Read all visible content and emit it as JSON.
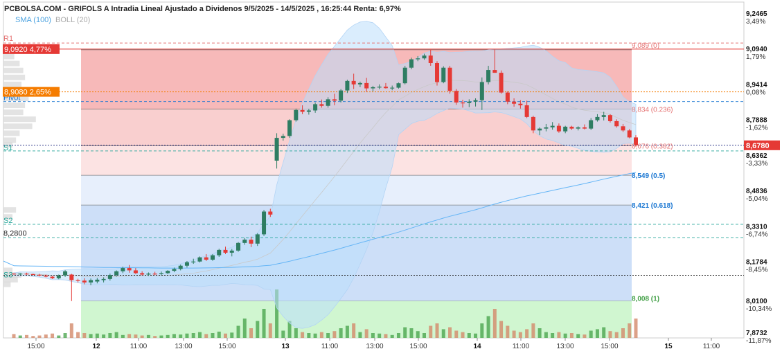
{
  "header": {
    "title": "PCBOLSA.COM - GRIFOLS A Intradia Lineal Ajustado a Dividenos 9/5/2025 - 14/5/2025 , 16:25:44 Renta: 6,97%",
    "indicator_sma": "SMA (100)",
    "indicator_boll": "BOLL (20)"
  },
  "colors": {
    "bull": "#2e7d62",
    "bear": "#e53935",
    "resistance": "#e57373",
    "support": "#26a69a",
    "pivot": "#1976d2",
    "fib_red_zone": "#f08080",
    "fib_blue_zone": "#90b8f0",
    "volume_bg": "#c8f5c8",
    "last_price": "#e53935",
    "orange": "#f57c00",
    "sma": "#64b5f6",
    "boll": "#bbdefb"
  },
  "chart_data": {
    "type": "candlestick",
    "x_axis": {
      "tick_labels": [
        "15:00",
        "12",
        "11:00",
        "13:00",
        "15:00",
        "13",
        "11:00",
        "13:00",
        "15:00",
        "14",
        "11:00",
        "13:00",
        "15:00",
        "15",
        "11:00"
      ]
    },
    "y_axis": {
      "range": [
        7.8732,
        9.2465
      ],
      "tick_values": [
        "9,2465",
        "9,0940",
        "8,9414",
        "8,7888",
        "8,6362",
        "8,4836",
        "8,3310",
        "8,1784",
        "8,0100",
        "7,8732"
      ],
      "percent_labels": [
        "3,49%",
        "1,79%",
        "0,08%",
        "-1,62%",
        "-3,33%",
        "-5,04%",
        "-6,74%",
        "-8,45%",
        "-10,34%",
        "-11,87%"
      ]
    },
    "levels": {
      "r1": {
        "label": "R1",
        "value": 9.118
      },
      "box_9092": {
        "text": "9,0920  4,77%",
        "value": 9.092
      },
      "box_8908": {
        "text": "8,9080  2,65%",
        "value": 8.908
      },
      "pivot": {
        "label": "Pivot",
        "value": 8.866
      },
      "s1": {
        "label": "S1",
        "value": 8.654
      },
      "s2": {
        "label": "S2",
        "value": 8.338
      },
      "level_8280": {
        "label": "8,2800",
        "value": 8.28
      },
      "s3": {
        "label": "S3",
        "value": 8.119
      },
      "last_price": {
        "text": "8,6780",
        "value": 8.678
      }
    },
    "fibonacci": [
      {
        "label": "9,089 (0)",
        "value": 9.089
      },
      {
        "label": "8,834 (0.236)",
        "value": 8.834
      },
      {
        "label": "8,676 (0.382)",
        "value": 8.676
      },
      {
        "label": "8,549 (0.5)",
        "value": 8.549
      },
      {
        "label": "8,421 (0.618)",
        "value": 8.421
      },
      {
        "label": "8,008 (1)",
        "value": 8.008
      }
    ],
    "volume_profile": [
      {
        "price": 9.09,
        "weight": 0.15
      },
      {
        "price": 9.06,
        "weight": 0.3
      },
      {
        "price": 9.03,
        "weight": 0.45
      },
      {
        "price": 9.0,
        "weight": 0.55
      },
      {
        "price": 8.97,
        "weight": 0.6
      },
      {
        "price": 8.94,
        "weight": 0.5
      },
      {
        "price": 8.91,
        "weight": 0.45
      },
      {
        "price": 8.88,
        "weight": 0.7
      },
      {
        "price": 8.85,
        "weight": 0.6
      },
      {
        "price": 8.82,
        "weight": 0.55
      },
      {
        "price": 8.79,
        "weight": 0.9
      },
      {
        "price": 8.76,
        "weight": 0.8
      },
      {
        "price": 8.73,
        "weight": 0.45
      },
      {
        "price": 8.7,
        "weight": 0.35
      },
      {
        "price": 8.68,
        "weight": 0.25
      },
      {
        "price": 8.4,
        "weight": 0.35
      },
      {
        "price": 8.37,
        "weight": 0.25
      },
      {
        "price": 8.14,
        "weight": 0.25
      },
      {
        "price": 8.12,
        "weight": 0.5
      },
      {
        "price": 8.1,
        "weight": 0.4
      },
      {
        "price": 8.08,
        "weight": 0.2
      }
    ],
    "candles": [
      [
        8.126,
        8.127,
        8.122,
        8.123
      ],
      [
        8.123,
        8.128,
        8.12,
        8.126
      ],
      [
        8.126,
        8.13,
        8.121,
        8.124
      ],
      [
        8.124,
        8.126,
        8.119,
        8.121
      ],
      [
        8.121,
        8.125,
        8.114,
        8.118
      ],
      [
        8.118,
        8.122,
        8.11,
        8.113
      ],
      [
        8.113,
        8.116,
        8.103,
        8.106
      ],
      [
        8.106,
        8.122,
        8.102,
        8.118
      ],
      [
        8.118,
        8.141,
        8.112,
        8.136
      ],
      [
        8.122,
        8.125,
        8.008,
        8.098
      ],
      [
        8.098,
        8.104,
        8.088,
        8.096
      ],
      [
        8.096,
        8.106,
        8.08,
        8.088
      ],
      [
        8.088,
        8.105,
        8.076,
        8.098
      ],
      [
        8.092,
        8.107,
        8.084,
        8.1
      ],
      [
        8.098,
        8.11,
        8.088,
        8.103
      ],
      [
        8.103,
        8.126,
        8.096,
        8.12
      ],
      [
        8.12,
        8.14,
        8.113,
        8.136
      ],
      [
        8.136,
        8.156,
        8.128,
        8.15
      ],
      [
        8.15,
        8.163,
        8.13,
        8.14
      ],
      [
        8.14,
        8.15,
        8.124,
        8.128
      ],
      [
        8.128,
        8.136,
        8.118,
        8.122
      ],
      [
        8.122,
        8.131,
        8.116,
        8.126
      ],
      [
        8.126,
        8.134,
        8.12,
        8.124
      ],
      [
        8.124,
        8.135,
        8.118,
        8.128
      ],
      [
        8.128,
        8.141,
        8.124,
        8.138
      ],
      [
        8.138,
        8.152,
        8.132,
        8.146
      ],
      [
        8.146,
        8.165,
        8.14,
        8.16
      ],
      [
        8.16,
        8.18,
        8.152,
        8.175
      ],
      [
        8.175,
        8.19,
        8.168,
        8.178
      ],
      [
        8.178,
        8.2,
        8.174,
        8.196
      ],
      [
        8.196,
        8.21,
        8.18,
        8.186
      ],
      [
        8.186,
        8.21,
        8.181,
        8.205
      ],
      [
        8.205,
        8.233,
        8.198,
        8.228
      ],
      [
        8.228,
        8.242,
        8.21,
        8.216
      ],
      [
        8.216,
        8.232,
        8.2,
        8.225
      ],
      [
        8.225,
        8.262,
        8.22,
        8.258
      ],
      [
        8.258,
        8.28,
        8.25,
        8.272
      ],
      [
        8.272,
        8.285,
        8.24,
        8.255
      ],
      [
        8.255,
        8.3,
        8.245,
        8.295
      ],
      [
        8.295,
        8.4,
        8.288,
        8.393
      ],
      [
        8.393,
        8.405,
        8.37,
        8.38
      ],
      [
        8.612,
        8.73,
        8.578,
        8.71
      ],
      [
        8.71,
        8.728,
        8.698,
        8.718
      ],
      [
        8.718,
        8.79,
        8.71,
        8.786
      ],
      [
        8.786,
        8.836,
        8.78,
        8.83
      ],
      [
        8.83,
        8.85,
        8.812,
        8.822
      ],
      [
        8.822,
        8.835,
        8.81,
        8.828
      ],
      [
        8.828,
        8.862,
        8.818,
        8.855
      ],
      [
        8.855,
        8.875,
        8.84,
        8.848
      ],
      [
        8.848,
        8.885,
        8.84,
        8.876
      ],
      [
        8.876,
        8.9,
        8.85,
        8.87
      ],
      [
        8.87,
        8.92,
        8.862,
        8.914
      ],
      [
        8.914,
        8.96,
        8.903,
        8.955
      ],
      [
        8.955,
        8.986,
        8.92,
        8.94
      ],
      [
        8.94,
        8.952,
        8.928,
        8.946
      ],
      [
        8.946,
        8.968,
        8.908,
        8.923
      ],
      [
        8.923,
        8.934,
        8.91,
        8.928
      ],
      [
        8.928,
        8.94,
        8.919,
        8.93
      ],
      [
        8.93,
        8.946,
        8.922,
        8.924
      ],
      [
        8.924,
        8.935,
        8.915,
        8.926
      ],
      [
        8.926,
        8.948,
        8.922,
        8.945
      ],
      [
        8.945,
        9.02,
        8.94,
        9.012
      ],
      [
        9.012,
        9.055,
        9.005,
        9.048
      ],
      [
        9.048,
        9.062,
        9.04,
        9.052
      ],
      [
        9.052,
        9.072,
        9.046,
        9.064
      ],
      [
        9.064,
        9.09,
        9.02,
        9.032
      ],
      [
        9.032,
        9.04,
        8.935,
        8.95
      ],
      [
        8.95,
        9.018,
        8.945,
        9.012
      ],
      [
        9.012,
        9.02,
        8.9,
        8.912
      ],
      [
        8.912,
        8.92,
        8.852,
        8.862
      ],
      [
        8.862,
        8.874,
        8.84,
        8.86
      ],
      [
        8.86,
        8.876,
        8.842,
        8.866
      ],
      [
        8.866,
        8.88,
        8.845,
        8.872
      ],
      [
        8.872,
        8.97,
        8.83,
        8.95
      ],
      [
        8.95,
        9.02,
        8.94,
        9.002
      ],
      [
        9.002,
        9.09,
        8.99,
        8.99
      ],
      [
        8.99,
        9.0,
        8.9,
        8.905
      ],
      [
        8.905,
        8.91,
        8.855,
        8.866
      ],
      [
        8.866,
        8.88,
        8.844,
        8.857
      ],
      [
        8.857,
        8.872,
        8.836,
        8.85
      ],
      [
        8.85,
        8.87,
        8.795,
        8.8
      ],
      [
        8.8,
        8.805,
        8.73,
        8.742
      ],
      [
        8.742,
        8.755,
        8.722,
        8.75
      ],
      [
        8.75,
        8.77,
        8.738,
        8.755
      ],
      [
        8.755,
        8.778,
        8.745,
        8.762
      ],
      [
        8.762,
        8.772,
        8.732,
        8.738
      ],
      [
        8.738,
        8.762,
        8.73,
        8.758
      ],
      [
        8.758,
        8.762,
        8.744,
        8.75
      ],
      [
        8.75,
        8.76,
        8.742,
        8.755
      ],
      [
        8.755,
        8.768,
        8.746,
        8.75
      ],
      [
        8.75,
        8.795,
        8.744,
        8.786
      ],
      [
        8.786,
        8.812,
        8.78,
        8.8
      ],
      [
        8.8,
        8.822,
        8.785,
        8.808
      ],
      [
        8.808,
        8.812,
        8.776,
        8.782
      ],
      [
        8.782,
        8.79,
        8.754,
        8.76
      ],
      [
        8.76,
        8.77,
        8.735,
        8.742
      ],
      [
        8.742,
        8.748,
        8.708,
        8.712
      ],
      [
        8.712,
        8.722,
        8.672,
        8.678
      ]
    ],
    "volumes": [
      0.08,
      0.05,
      0.06,
      0.04,
      0.05,
      0.07,
      0.09,
      0.05,
      0.1,
      0.3,
      0.12,
      0.1,
      0.08,
      0.09,
      0.07,
      0.1,
      0.12,
      0.06,
      0.08,
      0.07,
      0.05,
      0.06,
      0.04,
      0.05,
      0.06,
      0.08,
      0.07,
      0.09,
      0.1,
      0.12,
      0.08,
      0.1,
      0.13,
      0.09,
      0.11,
      0.25,
      0.4,
      0.2,
      0.35,
      0.6,
      0.3,
      1.0,
      0.15,
      0.35,
      0.2,
      0.12,
      0.1,
      0.09,
      0.12,
      0.1,
      0.14,
      0.2,
      0.25,
      0.3,
      0.12,
      0.18,
      0.1,
      0.09,
      0.08,
      0.06,
      0.1,
      0.22,
      0.2,
      0.14,
      0.1,
      0.25,
      0.3,
      0.18,
      0.22,
      0.15,
      0.12,
      0.1,
      0.09,
      0.3,
      0.45,
      0.6,
      0.35,
      0.25,
      0.15,
      0.12,
      0.18,
      0.3,
      0.2,
      0.12,
      0.1,
      0.12,
      0.09,
      0.1,
      0.08,
      0.07,
      0.15,
      0.18,
      0.22,
      0.14,
      0.12,
      0.2,
      0.3,
      0.4
    ]
  }
}
